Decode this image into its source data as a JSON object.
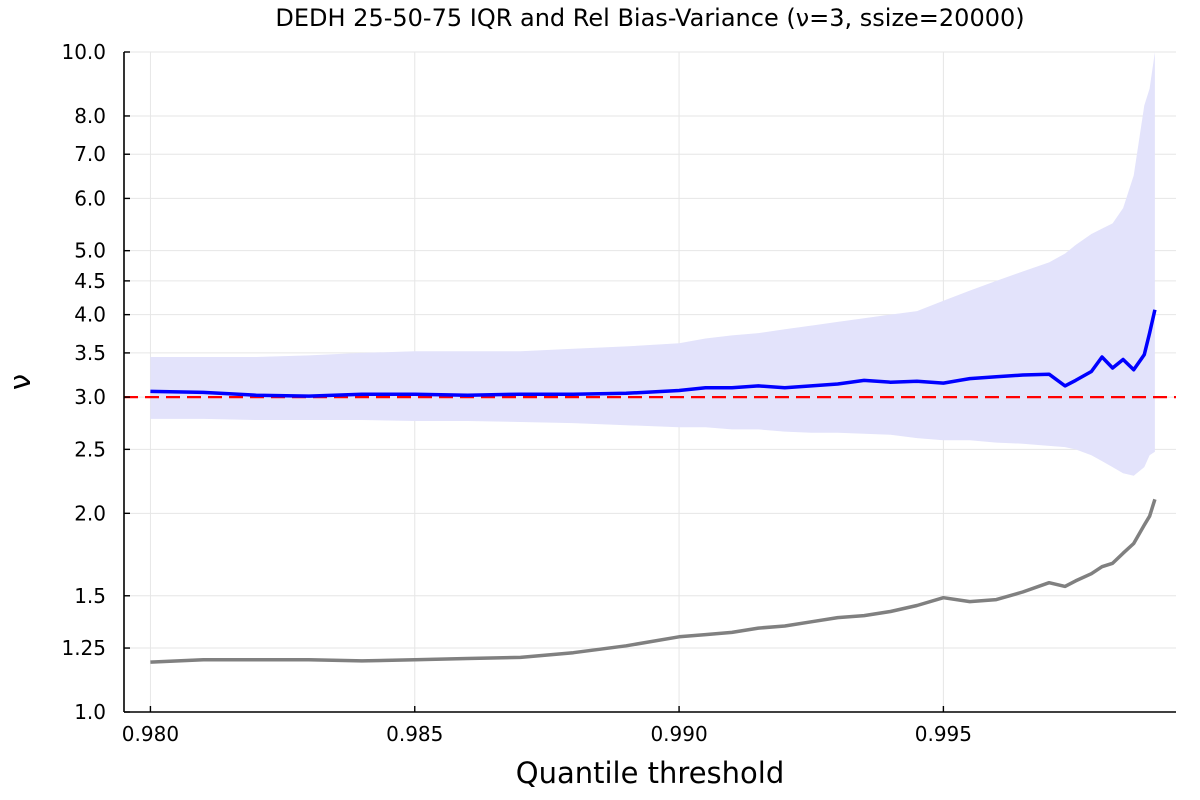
{
  "chart_data": {
    "type": "line",
    "title": "DEDH 25-50-75 IQR and Rel Bias-Variance (ν=3, ssize=20000)",
    "xlabel": "Quantile threshold",
    "ylabel": "ν",
    "y_scale": "log",
    "xlim": [
      0.9795,
      0.9994
    ],
    "ylim": [
      1.0,
      10.0
    ],
    "x_ticks": [
      0.98,
      0.985,
      0.99,
      0.995
    ],
    "x_tick_labels": [
      "0.980",
      "0.985",
      "0.990",
      "0.995"
    ],
    "y_ticks": [
      1.0,
      1.25,
      1.5,
      2.0,
      2.5,
      3.0,
      3.5,
      4.0,
      4.5,
      5.0,
      6.0,
      7.0,
      8.0,
      10.0
    ],
    "y_tick_labels": [
      "1.0",
      "1.25",
      "1.5",
      "2.0",
      "2.5",
      "3.0",
      "3.5",
      "4.0",
      "4.5",
      "5.0",
      "6.0",
      "7.0",
      "8.0",
      "10.0"
    ],
    "grid": true,
    "legend": "none",
    "colors": {
      "median": "#0000ff",
      "band": "#e3e3fb",
      "reference": "#ff0000",
      "rel": "#808080"
    },
    "reference_line": {
      "y": 3.0,
      "style": "dashed"
    },
    "x": [
      0.98,
      0.981,
      0.982,
      0.983,
      0.984,
      0.985,
      0.986,
      0.987,
      0.988,
      0.989,
      0.99,
      0.9905,
      0.991,
      0.9915,
      0.992,
      0.9925,
      0.993,
      0.9935,
      0.994,
      0.9945,
      0.995,
      0.9955,
      0.996,
      0.9965,
      0.997,
      0.9973,
      0.9975,
      0.9978,
      0.998,
      0.9982,
      0.9984,
      0.9986,
      0.9988,
      0.9989,
      0.999
    ],
    "series": [
      {
        "values": [
          3.06,
          3.05,
          3.02,
          3.01,
          3.03,
          3.03,
          3.02,
          3.03,
          3.03,
          3.04,
          3.07,
          3.1,
          3.1,
          3.12,
          3.1,
          3.12,
          3.14,
          3.18,
          3.16,
          3.17,
          3.15,
          3.2,
          3.22,
          3.24,
          3.25,
          3.12,
          3.18,
          3.28,
          3.45,
          3.32,
          3.42,
          3.3,
          3.48,
          3.75,
          4.07
        ]
      },
      {
        "values": [
          2.78,
          2.78,
          2.77,
          2.77,
          2.77,
          2.76,
          2.76,
          2.75,
          2.74,
          2.72,
          2.7,
          2.7,
          2.68,
          2.68,
          2.66,
          2.65,
          2.65,
          2.64,
          2.63,
          2.6,
          2.58,
          2.58,
          2.56,
          2.55,
          2.53,
          2.52,
          2.5,
          2.45,
          2.4,
          2.35,
          2.3,
          2.28,
          2.35,
          2.45,
          2.48
        ]
      },
      {
        "values": [
          3.45,
          3.45,
          3.45,
          3.47,
          3.5,
          3.52,
          3.52,
          3.52,
          3.55,
          3.58,
          3.62,
          3.68,
          3.72,
          3.75,
          3.8,
          3.85,
          3.9,
          3.95,
          4.0,
          4.05,
          4.2,
          4.35,
          4.5,
          4.65,
          4.8,
          4.95,
          5.1,
          5.3,
          5.4,
          5.5,
          5.8,
          6.5,
          8.3,
          8.8,
          10.0
        ]
      },
      {
        "values": [
          1.19,
          1.2,
          1.2,
          1.2,
          1.195,
          1.2,
          1.205,
          1.21,
          1.23,
          1.26,
          1.3,
          1.31,
          1.32,
          1.34,
          1.35,
          1.37,
          1.39,
          1.4,
          1.42,
          1.45,
          1.49,
          1.47,
          1.48,
          1.52,
          1.57,
          1.55,
          1.58,
          1.62,
          1.66,
          1.68,
          1.74,
          1.8,
          1.92,
          1.98,
          2.1
        ]
      }
    ]
  }
}
